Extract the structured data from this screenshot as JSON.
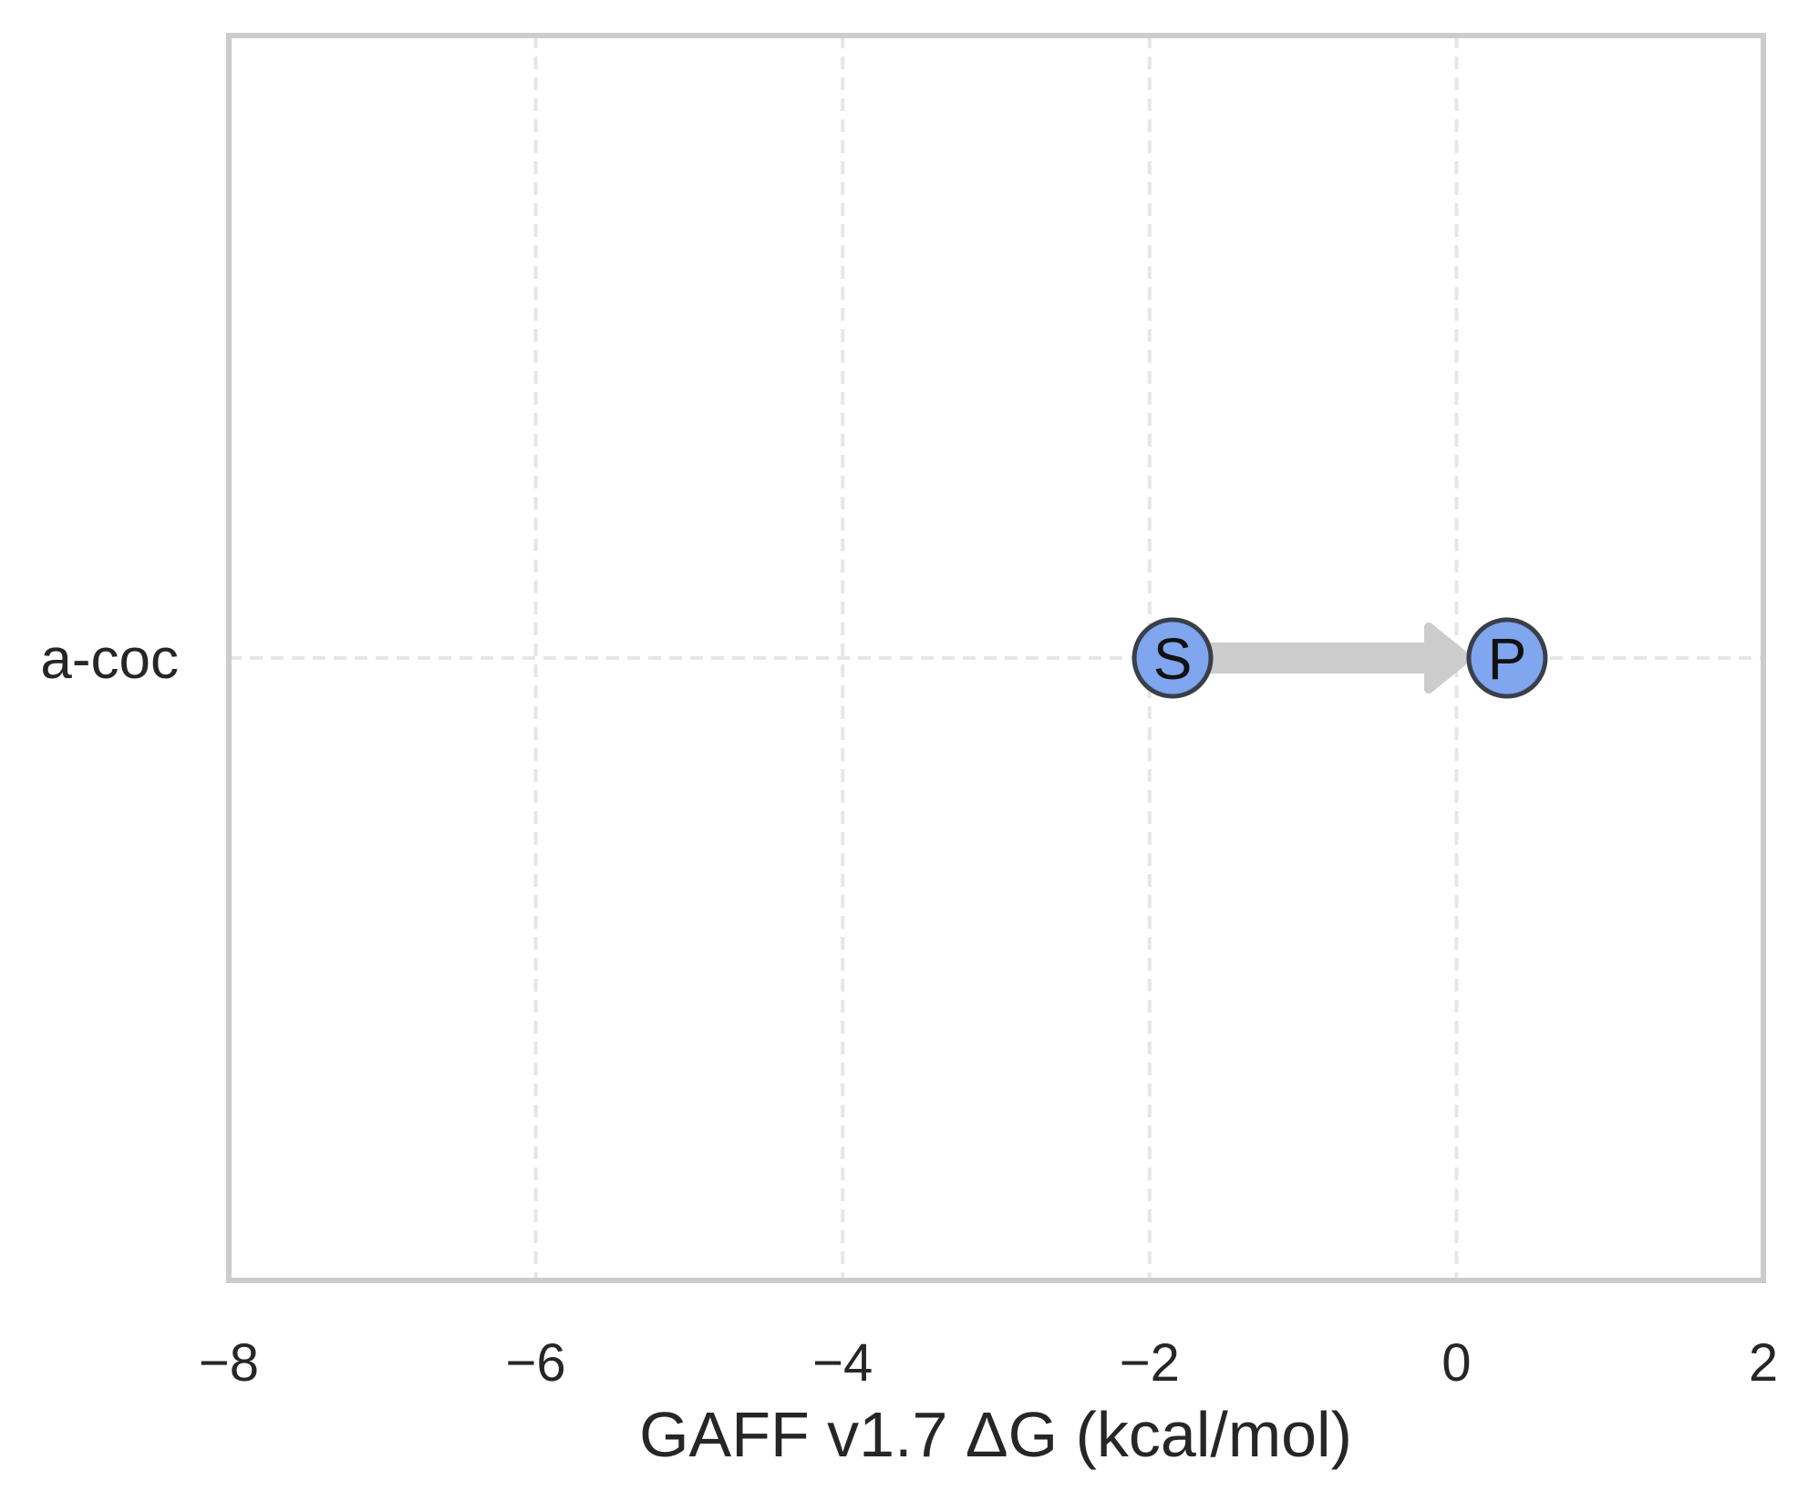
{
  "chart_data": {
    "type": "scatter",
    "xlabel": "GAFF v1.7 ΔG (kcal/mol)",
    "ylabel": "",
    "xlim": [
      -8,
      2
    ],
    "x_ticks": [
      -8,
      -6,
      -4,
      -2,
      0,
      2
    ],
    "x_tick_labels": [
      "−8",
      "−6",
      "−4",
      "−2",
      "0",
      "2"
    ],
    "categories": [
      "a-coc"
    ],
    "grid": true,
    "series": [
      {
        "category": "a-coc",
        "points": [
          {
            "label": "S",
            "x": -1.85
          },
          {
            "label": "P",
            "x": 0.33
          }
        ],
        "arrow": {
          "from": "S",
          "to": "P"
        }
      }
    ],
    "colors": {
      "node_fill": "#7fa6ee",
      "node_stroke": "#3a3f4a",
      "arrow": "#cccccc",
      "grid": "#e6e6e6",
      "frame": "#cccccc",
      "text": "#262626"
    }
  }
}
